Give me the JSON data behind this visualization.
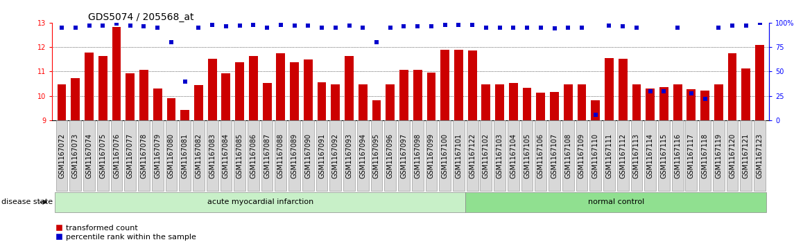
{
  "title": "GDS5074 / 205568_at",
  "samples": [
    "GSM1167072",
    "GSM1167073",
    "GSM1167074",
    "GSM1167075",
    "GSM1167076",
    "GSM1167077",
    "GSM1167078",
    "GSM1167079",
    "GSM1167080",
    "GSM1167081",
    "GSM1167082",
    "GSM1167083",
    "GSM1167084",
    "GSM1167085",
    "GSM1167086",
    "GSM1167087",
    "GSM1167088",
    "GSM1167089",
    "GSM1167090",
    "GSM1167091",
    "GSM1167092",
    "GSM1167093",
    "GSM1167094",
    "GSM1167095",
    "GSM1167096",
    "GSM1167097",
    "GSM1167098",
    "GSM1167099",
    "GSM1167100",
    "GSM1167101",
    "GSM1167122",
    "GSM1167102",
    "GSM1167103",
    "GSM1167104",
    "GSM1167105",
    "GSM1167106",
    "GSM1167107",
    "GSM1167108",
    "GSM1167109",
    "GSM1167110",
    "GSM1167111",
    "GSM1167112",
    "GSM1167113",
    "GSM1167114",
    "GSM1167115",
    "GSM1167116",
    "GSM1167117",
    "GSM1167118",
    "GSM1167119",
    "GSM1167120",
    "GSM1167121",
    "GSM1167123"
  ],
  "transformed_count": [
    10.48,
    10.73,
    11.78,
    11.63,
    12.83,
    10.92,
    11.07,
    10.32,
    9.9,
    9.43,
    10.46,
    11.53,
    10.92,
    11.37,
    11.63,
    10.52,
    11.75,
    11.37,
    11.48,
    10.57,
    10.48,
    11.63,
    10.48,
    9.83,
    10.47,
    11.07,
    11.07,
    10.97,
    11.9,
    11.9,
    11.85,
    10.47,
    10.48,
    10.52,
    10.33,
    10.15,
    10.17,
    10.47,
    10.48,
    9.83,
    11.55,
    11.52,
    10.47,
    10.3,
    10.35,
    10.48,
    10.27,
    10.22,
    10.47,
    11.75,
    11.13,
    12.1
  ],
  "percentile_rank": [
    95,
    95,
    97,
    97,
    99,
    97,
    96,
    95,
    80,
    40,
    95,
    98,
    96,
    97,
    98,
    95,
    98,
    97,
    97,
    95,
    95,
    97,
    95,
    80,
    95,
    96,
    96,
    96,
    98,
    98,
    98,
    95,
    95,
    95,
    95,
    95,
    94,
    95,
    95,
    6,
    97,
    96,
    95,
    30,
    30,
    95,
    28,
    22,
    95,
    97,
    97,
    100
  ],
  "group_boundaries": [
    0,
    30,
    52
  ],
  "group_labels": [
    "acute myocardial infarction",
    "normal control"
  ],
  "group_colors": [
    "#c8f0c8",
    "#90e090"
  ],
  "bar_color": "#cc0000",
  "percentile_color": "#0000cc",
  "ylim_left": [
    9.0,
    13.0
  ],
  "ylim_right": [
    0,
    100
  ],
  "yticks_left": [
    9,
    10,
    11,
    12,
    13
  ],
  "yticks_right": [
    0,
    25,
    50,
    75,
    100
  ],
  "title_fontsize": 10,
  "tick_fontsize": 7,
  "label_fontsize": 8,
  "disease_state_label": "disease state"
}
